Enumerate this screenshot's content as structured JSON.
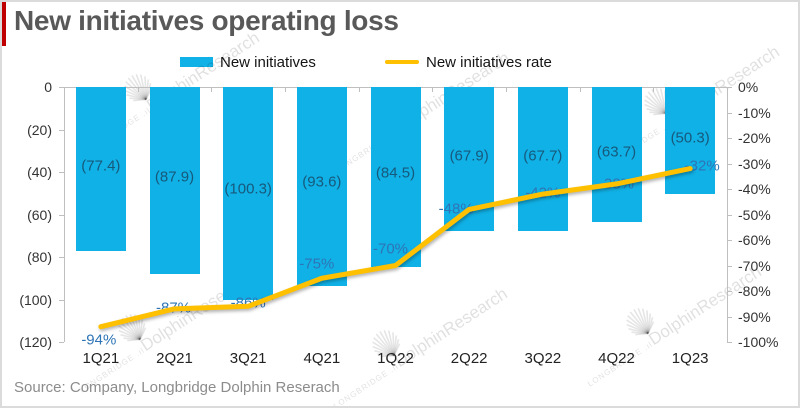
{
  "header": {
    "title": "New initiatives operating loss"
  },
  "legend": [
    {
      "label": "New initiatives",
      "type": "bar",
      "color": "#10B1E6"
    },
    {
      "label": "New initiatives rate",
      "type": "line",
      "color": "#FFC000"
    }
  ],
  "chart_data": {
    "type": "combo-bar-line",
    "title": "New initiatives operating loss",
    "categories": [
      "1Q21",
      "2Q21",
      "3Q21",
      "4Q21",
      "1Q22",
      "2Q22",
      "3Q22",
      "4Q22",
      "1Q23"
    ],
    "series": [
      {
        "name": "New initiatives",
        "type": "bar",
        "axis": "left",
        "values": [
          -77.4,
          -87.9,
          -100.3,
          -93.6,
          -84.5,
          -67.9,
          -67.7,
          -63.7,
          -50.3
        ],
        "labels": [
          "(77.4)",
          "(87.9)",
          "(100.3)",
          "(93.6)",
          "(84.5)",
          "(67.9)",
          "(67.7)",
          "(63.7)",
          "(50.3)"
        ],
        "color": "#10B1E6",
        "label_color": "#17597C"
      },
      {
        "name": "New initiatives rate",
        "type": "line",
        "axis": "right",
        "values": [
          -94,
          -87,
          -86,
          -75,
          -70,
          -48,
          -42,
          -38,
          -32
        ],
        "labels": [
          "-94%",
          "-87%",
          "-86%",
          "-75%",
          "-70%",
          "-48%",
          "-42%",
          "-38%",
          "-32%"
        ],
        "color": "#FFC000",
        "label_color": "#2E75B6"
      }
    ],
    "left_axis": {
      "ticks": [
        "0",
        "(20)",
        "(40)",
        "(60)",
        "(80)",
        "(100)",
        "(120)"
      ],
      "range": [
        0,
        -120
      ]
    },
    "right_axis": {
      "ticks": [
        "0%",
        "-10%",
        "-20%",
        "-30%",
        "-40%",
        "-50%",
        "-60%",
        "-70%",
        "-80%",
        "-90%",
        "-100%"
      ],
      "range": [
        0,
        -100
      ]
    },
    "grid": false,
    "legend_position": "top"
  },
  "watermark": {
    "brand_small": "LONGBRIDGE",
    "brand_large": "DolphinResearch"
  },
  "footer": {
    "source": "Source: Company, Longbridge Dolphin Reserach"
  },
  "colors": {
    "bar": "#10B1E6",
    "line": "#FFC000",
    "accent_red": "#C00000",
    "title_gray": "#595959",
    "axis_gray": "#BFBFBF"
  }
}
